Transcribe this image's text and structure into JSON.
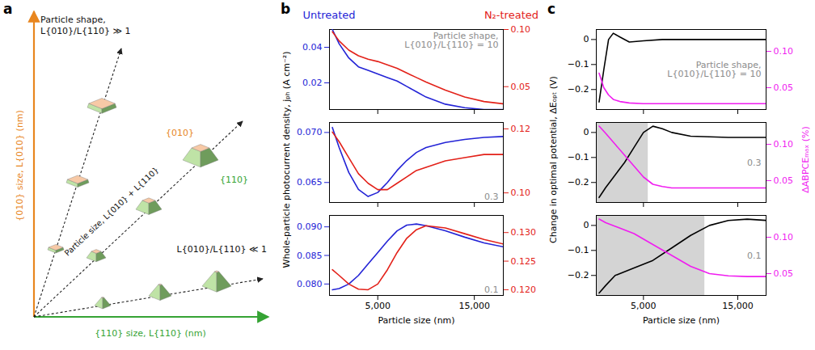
{
  "panel_letters": [
    "a",
    "b",
    "c"
  ],
  "diagram": {
    "y_axis_label": "{010} size, L{010} (nm)",
    "x_axis_label": "{110} size, L{110} (nm)",
    "shape_arrow_label": "Particle shape, L{010}/L{110} ≫ 1",
    "size_arrow_label": "Particle size, L{010} + L{110}",
    "flat_arrow_label": "L{010}/L{110} ≪ 1",
    "facet_labels": [
      "{010}",
      "{110}"
    ]
  },
  "chart_data": [
    {
      "type": "line",
      "annotation": "Particle shape, L{010}/L{110} = 10",
      "legend": "top",
      "tick_labels": "y",
      "x": [
        300,
        1000,
        2000,
        3000,
        4000,
        5000,
        6000,
        7000,
        8000,
        9000,
        10000,
        12000,
        14000,
        16000,
        18000
      ],
      "xlim": [
        0,
        18000
      ],
      "xticks": [
        {
          "value": 5000,
          "label": "5,000"
        },
        {
          "value": 15000,
          "label": "15,000"
        }
      ],
      "ylim": [
        0.005,
        0.05
      ],
      "yticks": [
        0.02,
        0.04
      ],
      "y2lim": [
        0.03,
        0.1
      ],
      "y2ticks": [
        0.05,
        {
          "value": 0.1,
          "label": "0.10"
        }
      ],
      "series": [
        {
          "name": "Untreated",
          "color": "#2323d6",
          "values": [
            0.05,
            0.042,
            0.034,
            0.029,
            0.027,
            0.025,
            0.023,
            0.021,
            0.018,
            0.015,
            0.012,
            0.008,
            0.006,
            0.005,
            0.005
          ]
        },
        {
          "name": "N₂-treated",
          "color": "#e32119",
          "axis": "y2",
          "values": [
            0.098,
            0.09,
            0.082,
            0.077,
            0.074,
            0.072,
            0.069,
            0.066,
            0.062,
            0.058,
            0.054,
            0.047,
            0.041,
            0.037,
            0.035
          ]
        }
      ]
    },
    {
      "type": "line",
      "annotation": "0.3",
      "y_label": "Whole-particle photocurrent density, jₚₕ (A cm⁻²)",
      "tick_labels": "y",
      "x": [
        300,
        1000,
        2000,
        3000,
        4000,
        5000,
        6000,
        7000,
        8000,
        9000,
        10000,
        12000,
        14000,
        16000,
        18000
      ],
      "xlim": [
        0,
        18000
      ],
      "xticks": [
        {
          "value": 5000,
          "label": "5,000"
        },
        {
          "value": 15000,
          "label": "15,000"
        }
      ],
      "ylim": [
        0.063,
        0.071
      ],
      "yticks": [
        0.065,
        {
          "value": 0.07,
          "label": "0.070"
        }
      ],
      "y2lim": [
        0.097,
        0.122
      ],
      "y2ticks": [
        {
          "value": 0.1,
          "label": "0.10"
        },
        0.12
      ],
      "series": [
        {
          "color": "#2323d6",
          "values": [
            0.0705,
            0.0685,
            0.066,
            0.0643,
            0.0636,
            0.064,
            0.065,
            0.0662,
            0.0672,
            0.068,
            0.0685,
            0.069,
            0.0693,
            0.0695,
            0.0696
          ]
        },
        {
          "color": "#e32119",
          "axis": "y2",
          "values": [
            0.119,
            0.116,
            0.111,
            0.106,
            0.103,
            0.101,
            0.101,
            0.103,
            0.105,
            0.107,
            0.108,
            0.11,
            0.111,
            0.112,
            0.112
          ]
        }
      ]
    },
    {
      "type": "line",
      "annotation": "0.1",
      "x_label": "Particle size (nm)",
      "x": [
        300,
        1000,
        2000,
        3000,
        4000,
        5000,
        6000,
        7000,
        8000,
        9000,
        10000,
        12000,
        14000,
        16000,
        18000
      ],
      "xlim": [
        0,
        18000
      ],
      "xticks": [
        {
          "value": 5000,
          "label": "5,000"
        },
        {
          "value": 15000,
          "label": "15,000"
        }
      ],
      "ylim": [
        0.078,
        0.092
      ],
      "yticks": [
        {
          "value": 0.08,
          "label": "0.080"
        },
        0.085,
        {
          "value": 0.09,
          "label": "0.090"
        }
      ],
      "y2lim": [
        0.119,
        0.133
      ],
      "y2ticks": [
        {
          "value": 0.12,
          "label": "0.120"
        },
        0.125,
        {
          "value": 0.13,
          "label": "0.130"
        }
      ],
      "series": [
        {
          "color": "#2323d6",
          "values": [
            0.079,
            0.0792,
            0.08,
            0.0815,
            0.0835,
            0.0855,
            0.0875,
            0.0893,
            0.0903,
            0.0905,
            0.0902,
            0.0893,
            0.0882,
            0.0872,
            0.0865
          ]
        },
        {
          "color": "#e32119",
          "axis": "y2",
          "values": [
            0.1235,
            0.1225,
            0.121,
            0.1201,
            0.12,
            0.121,
            0.1235,
            0.1265,
            0.129,
            0.1305,
            0.1312,
            0.1308,
            0.1298,
            0.1288,
            0.128
          ]
        }
      ]
    },
    {
      "type": "line",
      "annotation": "Particle shape, L{010}/L{110} = 10",
      "tick_labels": "y",
      "x": [
        300,
        800,
        1300,
        1800,
        2500,
        3500,
        5000,
        7000,
        10000,
        14000,
        18000
      ],
      "xlim": [
        0,
        18000
      ],
      "xticks": [
        {
          "value": 5000,
          "label": "5,000"
        },
        {
          "value": 15000,
          "label": "15,000"
        }
      ],
      "ylim": [
        -0.28,
        0.04
      ],
      "yticks": [
        {
          "value": -0.2,
          "label": "−0.2"
        },
        {
          "value": -0.1,
          "label": "−0.1"
        },
        0
      ],
      "y2lim": [
        0.02,
        0.13
      ],
      "y2ticks": [
        0.05,
        {
          "value": 0.1,
          "label": "0.10"
        }
      ],
      "series": [
        {
          "color": "#000000",
          "values": [
            -0.25,
            -0.12,
            0.0,
            0.025,
            0.01,
            -0.01,
            -0.005,
            0,
            0,
            0,
            0
          ]
        },
        {
          "color": "#f01df0",
          "axis": "y2",
          "values": [
            0.07,
            0.05,
            0.04,
            0.034,
            0.031,
            0.029,
            0.028,
            0.028,
            0.028,
            0.028,
            0.028
          ]
        }
      ]
    },
    {
      "type": "line",
      "annotation": "0.3",
      "y_label": "Change in optimal potential, ΔEₒₚₜ (V)",
      "y2_label": "ΔABPCEₘₐₓ (%)",
      "tick_labels": "y",
      "highlight": [
        0,
        5500
      ],
      "x": [
        300,
        1000,
        2000,
        3000,
        4000,
        5000,
        6000,
        7000,
        8000,
        10000,
        14000,
        18000
      ],
      "xlim": [
        0,
        18000
      ],
      "xticks": [
        {
          "value": 5000,
          "label": "5,000"
        },
        {
          "value": 15000,
          "label": "15,000"
        }
      ],
      "ylim": [
        -0.28,
        0.04
      ],
      "yticks": [
        {
          "value": -0.2,
          "label": "−0.2"
        },
        {
          "value": -0.1,
          "label": "−0.1"
        },
        0
      ],
      "y2lim": [
        0.02,
        0.13
      ],
      "y2ticks": [
        0.05,
        {
          "value": 0.1,
          "label": "0.10"
        }
      ],
      "series": [
        {
          "color": "#000000",
          "values": [
            -0.26,
            -0.22,
            -0.17,
            -0.12,
            -0.06,
            0.0,
            0.025,
            0.015,
            0.0,
            -0.015,
            -0.02,
            -0.02
          ]
        },
        {
          "color": "#f01df0",
          "axis": "y2",
          "values": [
            0.125,
            0.115,
            0.1,
            0.085,
            0.07,
            0.055,
            0.045,
            0.042,
            0.04,
            0.04,
            0.04,
            0.04
          ]
        }
      ]
    },
    {
      "type": "line",
      "annotation": "0.1",
      "x_label": "Particle size (nm)",
      "highlight": [
        0,
        11500
      ],
      "x": [
        300,
        1000,
        2000,
        4000,
        6000,
        8000,
        10000,
        12000,
        14000,
        16000,
        18000
      ],
      "xlim": [
        0,
        18000
      ],
      "xticks": [
        {
          "value": 5000,
          "label": "5,000"
        },
        {
          "value": 15000,
          "label": "15,000"
        }
      ],
      "ylim": [
        -0.28,
        0.04
      ],
      "yticks": [
        {
          "value": -0.2,
          "label": "−0.2"
        },
        {
          "value": -0.1,
          "label": "−0.1"
        },
        0
      ],
      "y2lim": [
        0.02,
        0.13
      ],
      "y2ticks": [
        0.05,
        {
          "value": 0.1,
          "label": "0.10"
        }
      ],
      "series": [
        {
          "color": "#000000",
          "values": [
            -0.27,
            -0.24,
            -0.2,
            -0.17,
            -0.14,
            -0.09,
            -0.04,
            0.0,
            0.02,
            0.025,
            0.02
          ]
        },
        {
          "color": "#f01df0",
          "axis": "y2",
          "values": [
            0.125,
            0.12,
            0.115,
            0.105,
            0.09,
            0.075,
            0.06,
            0.05,
            0.047,
            0.046,
            0.046
          ]
        }
      ]
    }
  ]
}
